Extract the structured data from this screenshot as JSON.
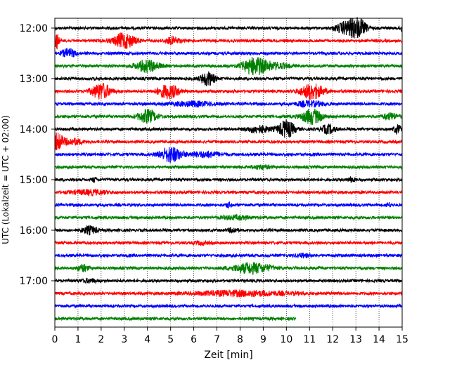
{
  "chart_data": {
    "type": "line",
    "title": "",
    "xlabel": "Zeit  [min]",
    "ylabel": "UTC (Lokalzeit = UTC + 02:00)",
    "xlim": [
      0,
      15
    ],
    "x_ticks": [
      0,
      1,
      2,
      3,
      4,
      5,
      6,
      7,
      8,
      9,
      10,
      11,
      12,
      13,
      14,
      15
    ],
    "x_grid": true,
    "row_interval_min": 15,
    "y_tick_labels": [
      {
        "label": "12:00",
        "row": 0
      },
      {
        "label": "13:00",
        "row": 4
      },
      {
        "label": "14:00",
        "row": 8
      },
      {
        "label": "15:00",
        "row": 12
      },
      {
        "label": "16:00",
        "row": 16
      },
      {
        "label": "17:00",
        "row": 20
      }
    ],
    "trace_colors": [
      "#000000",
      "#ff0000",
      "#0000ff",
      "#008000"
    ],
    "traces": [
      {
        "start": "12:00",
        "end_min": 15,
        "events": [
          {
            "t": 12.6,
            "a": 0.7,
            "w": 0.45
          },
          {
            "t": 13.1,
            "a": 1.0,
            "w": 0.35
          },
          {
            "t": 15.0,
            "a": 0.4,
            "w": 0.1
          }
        ]
      },
      {
        "start": "12:15",
        "end_min": 15,
        "events": [
          {
            "t": 0.05,
            "a": 1.0,
            "w": 0.12
          },
          {
            "t": 3.0,
            "a": 0.9,
            "w": 0.45
          },
          {
            "t": 5.1,
            "a": 0.4,
            "w": 0.3
          }
        ]
      },
      {
        "start": "12:30",
        "end_min": 15,
        "events": [
          {
            "t": 0.6,
            "a": 0.5,
            "w": 0.3
          }
        ]
      },
      {
        "start": "12:45",
        "end_min": 15,
        "events": [
          {
            "t": 4.0,
            "a": 0.7,
            "w": 0.5
          },
          {
            "t": 8.6,
            "a": 1.0,
            "w": 0.5
          },
          {
            "t": 9.5,
            "a": 0.35,
            "w": 0.6
          }
        ]
      },
      {
        "start": "13:00",
        "end_min": 15,
        "events": [
          {
            "t": 6.6,
            "a": 0.8,
            "w": 0.3
          }
        ]
      },
      {
        "start": "13:15",
        "end_min": 15,
        "events": [
          {
            "t": 2.0,
            "a": 0.95,
            "w": 0.4
          },
          {
            "t": 4.9,
            "a": 0.8,
            "w": 0.45
          },
          {
            "t": 11.1,
            "a": 0.9,
            "w": 0.5
          }
        ]
      },
      {
        "start": "13:30",
        "end_min": 15,
        "events": [
          {
            "t": 6.0,
            "a": 0.25,
            "w": 1.0
          },
          {
            "t": 11.0,
            "a": 0.3,
            "w": 0.6
          }
        ]
      },
      {
        "start": "13:45",
        "end_min": 15,
        "events": [
          {
            "t": 4.0,
            "a": 0.75,
            "w": 0.4
          },
          {
            "t": 11.1,
            "a": 0.85,
            "w": 0.45
          },
          {
            "t": 14.5,
            "a": 0.35,
            "w": 0.35
          }
        ]
      },
      {
        "start": "14:00",
        "end_min": 15,
        "events": [
          {
            "t": 8.8,
            "a": 0.4,
            "w": 0.5
          },
          {
            "t": 10.0,
            "a": 1.0,
            "w": 0.35
          },
          {
            "t": 11.8,
            "a": 0.5,
            "w": 0.3
          },
          {
            "t": 14.8,
            "a": 0.5,
            "w": 0.15
          }
        ]
      },
      {
        "start": "14:15",
        "end_min": 15,
        "events": [
          {
            "t": 0.1,
            "a": 1.0,
            "w": 0.25
          },
          {
            "t": 0.8,
            "a": 0.35,
            "w": 0.4
          }
        ]
      },
      {
        "start": "14:30",
        "end_min": 15,
        "events": [
          {
            "t": 5.0,
            "a": 0.9,
            "w": 0.45
          },
          {
            "t": 6.5,
            "a": 0.3,
            "w": 0.7
          }
        ]
      },
      {
        "start": "14:45",
        "end_min": 15,
        "events": [
          {
            "t": 8.9,
            "a": 0.2,
            "w": 0.4
          }
        ]
      },
      {
        "start": "15:00",
        "end_min": 15,
        "events": [
          {
            "t": 1.7,
            "a": 0.25,
            "w": 0.1
          },
          {
            "t": 12.8,
            "a": 0.25,
            "w": 0.15
          }
        ]
      },
      {
        "start": "15:15",
        "end_min": 15,
        "events": [
          {
            "t": 1.5,
            "a": 0.25,
            "w": 0.8
          }
        ]
      },
      {
        "start": "15:30",
        "end_min": 15,
        "events": [
          {
            "t": 7.5,
            "a": 0.3,
            "w": 0.1
          },
          {
            "t": 14.4,
            "a": 0.25,
            "w": 0.1
          }
        ]
      },
      {
        "start": "15:45",
        "end_min": 15,
        "events": [
          {
            "t": 7.8,
            "a": 0.2,
            "w": 0.6
          }
        ]
      },
      {
        "start": "16:00",
        "end_min": 15,
        "events": [
          {
            "t": 1.5,
            "a": 0.45,
            "w": 0.3
          },
          {
            "t": 7.7,
            "a": 0.25,
            "w": 0.2
          }
        ]
      },
      {
        "start": "16:15",
        "end_min": 15,
        "events": [
          {
            "t": 6.3,
            "a": 0.15,
            "w": 0.3
          }
        ]
      },
      {
        "start": "16:30",
        "end_min": 15,
        "events": [
          {
            "t": 10.7,
            "a": 0.2,
            "w": 0.3
          }
        ]
      },
      {
        "start": "16:45",
        "end_min": 15,
        "events": [
          {
            "t": 1.2,
            "a": 0.35,
            "w": 0.25
          },
          {
            "t": 8.5,
            "a": 0.6,
            "w": 0.8
          }
        ]
      },
      {
        "start": "17:00",
        "end_min": 15,
        "events": [
          {
            "t": 1.5,
            "a": 0.2,
            "w": 0.3
          }
        ]
      },
      {
        "start": "17:15",
        "end_min": 15,
        "events": [
          {
            "t": 8.0,
            "a": 0.3,
            "w": 2.0
          }
        ]
      },
      {
        "start": "17:30",
        "end_min": 15,
        "events": []
      },
      {
        "start": "17:45",
        "end_min": 10.4,
        "events": []
      }
    ]
  }
}
